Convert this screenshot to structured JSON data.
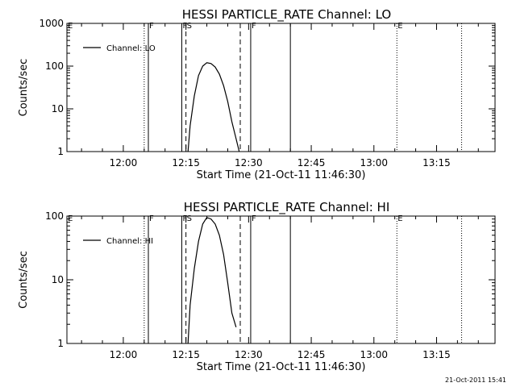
{
  "chart_data": [
    {
      "type": "line",
      "title": "HESSI PARTICLE_RATE Channel: LO",
      "xlabel": "Start Time (21-Oct-11 11:46:30)",
      "ylabel": "Counts/sec",
      "yscale": "log",
      "ylim": [
        1,
        1000
      ],
      "xlim": [
        "11:46:30",
        "13:29:00"
      ],
      "x_ticks": [
        "12:00",
        "12:15",
        "12:30",
        "12:45",
        "13:00",
        "13:15"
      ],
      "y_ticks": [
        "1",
        "10",
        "100",
        "1000"
      ],
      "legend": {
        "placement": "top-left",
        "entries": [
          "Channel: LO"
        ]
      },
      "grid": false,
      "series": [
        {
          "name": "Channel: LO",
          "x": [
            "12:15:30",
            "12:16:00",
            "12:17:00",
            "12:18:00",
            "12:19:00",
            "12:20:00",
            "12:21:00",
            "12:22:00",
            "12:23:00",
            "12:24:00",
            "12:25:00",
            "12:26:00",
            "12:27:00",
            "12:27:45"
          ],
          "y": [
            1,
            4,
            20,
            60,
            100,
            120,
            115,
            95,
            65,
            35,
            15,
            5,
            2,
            1
          ]
        }
      ],
      "markers": [
        {
          "label": "E",
          "time": "11:46:30",
          "style": "none"
        },
        {
          "label": "",
          "time": "12:05:00",
          "style": "dotted"
        },
        {
          "label": "F",
          "time": "12:06:00",
          "style": "solid"
        },
        {
          "label": "F",
          "time": "12:14:00",
          "style": "solid"
        },
        {
          "label": "S",
          "time": "12:15:00",
          "style": "dashed"
        },
        {
          "label": "",
          "time": "12:28:00",
          "style": "dashed"
        },
        {
          "label": "F",
          "time": "12:30:30",
          "style": "solid"
        },
        {
          "label": "",
          "time": "12:40:00",
          "style": "solid"
        },
        {
          "label": "E",
          "time": "13:05:30",
          "style": "dotted"
        },
        {
          "label": "",
          "time": "13:21:00",
          "style": "dotted"
        }
      ]
    },
    {
      "type": "line",
      "title": "HESSI PARTICLE_RATE Channel: HI",
      "xlabel": "Start Time (21-Oct-11 11:46:30)",
      "ylabel": "Counts/sec",
      "yscale": "log",
      "ylim": [
        1,
        100
      ],
      "xlim": [
        "11:46:30",
        "13:29:00"
      ],
      "x_ticks": [
        "12:00",
        "12:15",
        "12:30",
        "12:45",
        "13:00",
        "13:15"
      ],
      "y_ticks": [
        "1",
        "10",
        "100"
      ],
      "legend": {
        "placement": "top-left",
        "entries": [
          "Channel: HI"
        ]
      },
      "grid": false,
      "series": [
        {
          "name": "Channel: HI",
          "x": [
            "12:15:30",
            "12:16:00",
            "12:17:00",
            "12:18:00",
            "12:19:00",
            "12:20:00",
            "12:21:00",
            "12:22:00",
            "12:23:00",
            "12:24:00",
            "12:25:00",
            "12:26:00",
            "12:27:00"
          ],
          "y": [
            1,
            4,
            15,
            40,
            75,
            95,
            90,
            75,
            50,
            25,
            9,
            3,
            1.8
          ]
        }
      ],
      "markers": [
        {
          "label": "E",
          "time": "11:46:30",
          "style": "none"
        },
        {
          "label": "",
          "time": "12:05:00",
          "style": "dotted"
        },
        {
          "label": "F",
          "time": "12:06:00",
          "style": "solid"
        },
        {
          "label": "F",
          "time": "12:14:00",
          "style": "solid"
        },
        {
          "label": "S",
          "time": "12:15:00",
          "style": "dashed"
        },
        {
          "label": "",
          "time": "12:28:00",
          "style": "dashed"
        },
        {
          "label": "F",
          "time": "12:30:30",
          "style": "solid"
        },
        {
          "label": "",
          "time": "12:40:00",
          "style": "solid"
        },
        {
          "label": "E",
          "time": "13:05:30",
          "style": "dotted"
        },
        {
          "label": "",
          "time": "13:21:00",
          "style": "dotted"
        }
      ]
    }
  ],
  "footer": {
    "timestamp": "21-Oct-2011 15:41"
  }
}
